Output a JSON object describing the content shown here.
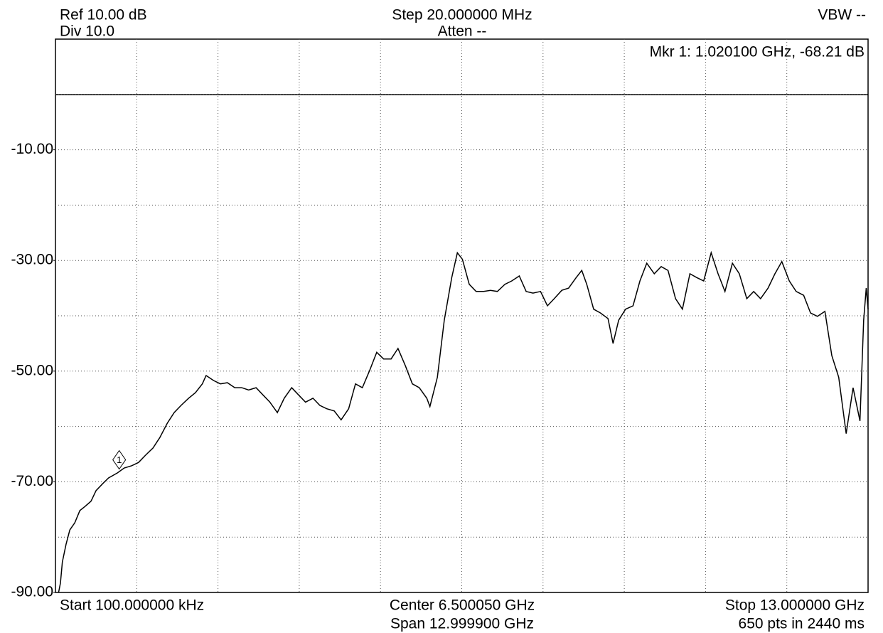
{
  "chart_data": {
    "type": "line",
    "header": [
      "Ref 10.00 dB",
      "Div 10.0",
      "Step 20.000000 MHz",
      "Atten --",
      "VBW --"
    ],
    "footer": [
      "Start 100.000000 kHz",
      "Center 6.500050 GHz",
      "Span 12.999900 GHz",
      "Stop 13.000000 GHz",
      "650 pts in 2440 ms"
    ],
    "marker_readout": "Mkr 1: 1.020100 GHz, -68.21 dB",
    "marker": {
      "label": "1",
      "x": 1.0201,
      "y": -68.21
    },
    "xlim": [
      0.0001,
      13
    ],
    "ylim": [
      -90,
      10
    ],
    "yticks": [
      {
        "value": -10,
        "label": "-10.00"
      },
      {
        "value": -30,
        "label": "-30.00"
      },
      {
        "value": -50,
        "label": "-50.00"
      },
      {
        "value": -70,
        "label": "-70.00"
      },
      {
        "value": -90,
        "label": "-90.00"
      }
    ],
    "grid": true,
    "color": "#000000",
    "x": [
      0.05,
      0.08,
      0.11,
      0.17,
      0.23,
      0.31,
      0.39,
      0.48,
      0.57,
      0.65,
      0.76,
      0.85,
      0.99,
      1.1,
      1.22,
      1.33,
      1.44,
      1.56,
      1.67,
      1.79,
      1.9,
      2.01,
      2.13,
      2.24,
      2.35,
      2.41,
      2.53,
      2.64,
      2.75,
      2.87,
      2.98,
      3.09,
      3.21,
      3.32,
      3.43,
      3.55,
      3.66,
      3.78,
      3.89,
      4.0,
      4.12,
      4.23,
      4.34,
      4.46,
      4.57,
      4.69,
      4.8,
      4.91,
      5.03,
      5.14,
      5.25,
      5.37,
      5.48,
      5.6,
      5.71,
      5.82,
      5.94,
      5.99,
      6.11,
      6.22,
      6.34,
      6.43,
      6.51,
      6.62,
      6.73,
      6.85,
      6.96,
      7.07,
      7.19,
      7.3,
      7.42,
      7.53,
      7.64,
      7.76,
      7.87,
      7.98,
      8.1,
      8.21,
      8.33,
      8.42,
      8.5,
      8.61,
      8.72,
      8.84,
      8.92,
      9.01,
      9.12,
      9.24,
      9.35,
      9.46,
      9.58,
      9.69,
      9.8,
      9.92,
      10.03,
      10.15,
      10.26,
      10.37,
      10.49,
      10.6,
      10.71,
      10.83,
      10.94,
      11.06,
      11.17,
      11.28,
      11.4,
      11.51,
      11.62,
      11.74,
      11.85,
      11.97,
      12.08,
      12.19,
      12.31,
      12.42,
      12.53,
      12.65,
      12.76,
      12.87,
      12.93,
      12.97,
      13.0
    ],
    "values": [
      -90,
      -88.3,
      -84.5,
      -81.3,
      -78.7,
      -77.4,
      -75.2,
      -74.4,
      -73.5,
      -71.6,
      -70.3,
      -69.3,
      -68.4,
      -67.5,
      -67.1,
      -66.5,
      -65.2,
      -63.9,
      -62.0,
      -59.4,
      -57.5,
      -56.2,
      -54.9,
      -53.9,
      -52.3,
      -50.8,
      -51.7,
      -52.3,
      -52.1,
      -53.0,
      -53.0,
      -53.4,
      -53.0,
      -54.3,
      -55.6,
      -57.5,
      -54.9,
      -53.0,
      -54.3,
      -55.6,
      -54.9,
      -56.2,
      -56.8,
      -57.2,
      -58.8,
      -56.8,
      -52.3,
      -53.0,
      -49.8,
      -46.6,
      -47.8,
      -47.8,
      -45.9,
      -49.1,
      -52.3,
      -53.0,
      -54.9,
      -56.4,
      -51.1,
      -40.8,
      -33.1,
      -28.6,
      -29.8,
      -34.3,
      -35.6,
      -35.6,
      -35.4,
      -35.6,
      -34.3,
      -33.7,
      -32.8,
      -35.6,
      -35.9,
      -35.6,
      -38.2,
      -36.9,
      -35.4,
      -35.0,
      -33.1,
      -31.8,
      -34.3,
      -38.8,
      -39.5,
      -40.5,
      -45.0,
      -40.8,
      -38.8,
      -38.2,
      -33.7,
      -30.5,
      -32.4,
      -31.1,
      -31.8,
      -36.9,
      -38.8,
      -32.4,
      -33.1,
      -33.7,
      -28.6,
      -32.4,
      -35.6,
      -30.5,
      -32.4,
      -36.9,
      -35.6,
      -36.9,
      -35.0,
      -32.4,
      -30.2,
      -33.7,
      -35.6,
      -36.3,
      -39.5,
      -40.1,
      -39.2,
      -47.2,
      -51.1,
      -61.3,
      -53.0,
      -59.0,
      -40.8,
      -35.0,
      -38.8
    ]
  }
}
